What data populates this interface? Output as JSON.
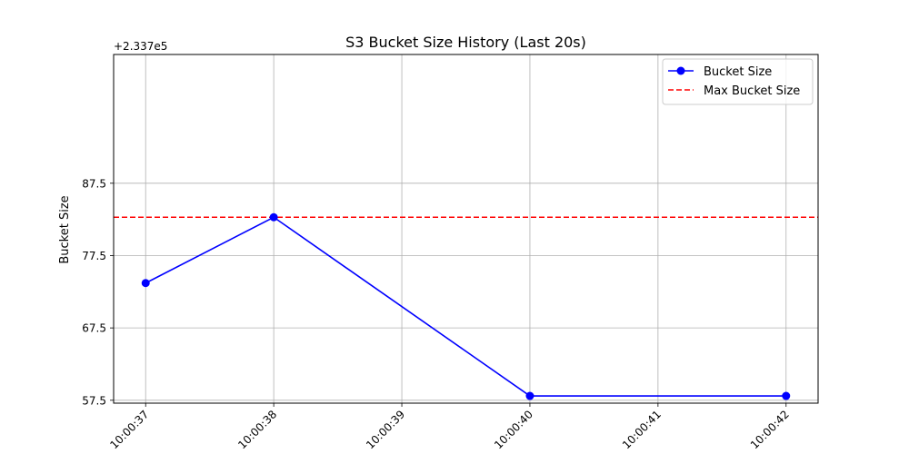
{
  "chart_data": {
    "type": "line",
    "title": "S3 Bucket Size History (Last 20s)",
    "ylabel": "Bucket Size",
    "xlabel": "",
    "offset_label": "+2.337e5",
    "x_ticks": [
      "10:00:37",
      "10:00:38",
      "10:00:39",
      "10:00:40",
      "10:00:41",
      "10:00:42"
    ],
    "y_ticks": [
      "57.5",
      "67.5",
      "77.5",
      "87.5"
    ],
    "y_tick_values": [
      57.5,
      67.5,
      77.5,
      87.5
    ],
    "ylim": [
      57.1,
      105.3
    ],
    "xlim": [
      36.75,
      42.25
    ],
    "grid": true,
    "legend_position": "top-right",
    "series": [
      {
        "name": "Bucket Size",
        "color": "#0000ff",
        "line_style": "solid",
        "marker": "circle",
        "x": [
          37,
          38,
          40,
          42
        ],
        "x_labels": [
          "10:00:37",
          "10:00:38",
          "10:00:40",
          "10:00:42"
        ],
        "values": [
          73.7,
          82.8,
          58.1,
          58.1
        ]
      }
    ],
    "reference_lines": [
      {
        "name": "Max Bucket Size",
        "color": "#ff0000",
        "line_style": "dashed",
        "value": 82.8
      }
    ]
  }
}
